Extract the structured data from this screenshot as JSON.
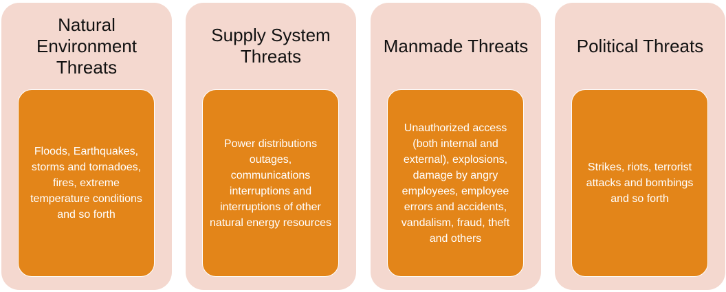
{
  "columns": [
    {
      "title": "Natural Environment Threats",
      "body": "Floods, Earthquakes, storms and tornadoes, fires, extreme temperature conditions and so forth"
    },
    {
      "title": "Supply System Threats",
      "body": "Power distributions outages, communications interruptions and interruptions of other natural energy resources"
    },
    {
      "title": "Manmade Threats",
      "body": "Unauthorized access (both internal and external), explosions, damage by angry employees, employee errors and accidents, vandalism, fraud, theft and others"
    },
    {
      "title": "Political Threats",
      "body": "Strikes, riots, terrorist attacks and bombings and so forth"
    }
  ],
  "colors": {
    "column_background": "#f4d8cf",
    "box_background": "#e38519",
    "title_text": "#111111",
    "box_text": "#ffffff"
  }
}
